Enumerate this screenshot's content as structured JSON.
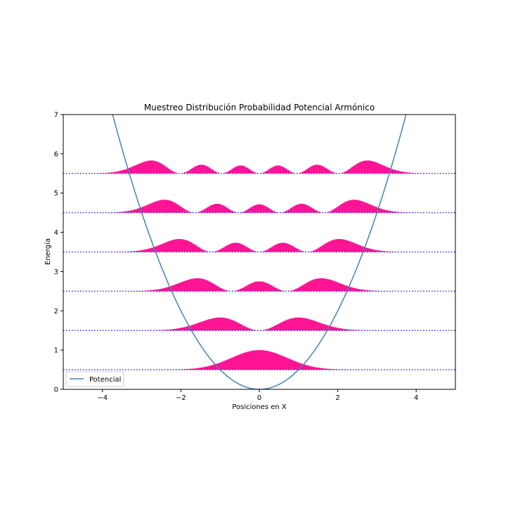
{
  "chart_data": {
    "type": "area",
    "title": "Muestreo Distribución Probabilidad Potencial Armónico",
    "xlabel": "Posiciones en X",
    "ylabel": "Energía",
    "xlim": [
      -5,
      5
    ],
    "ylim": [
      0,
      7
    ],
    "xticks": [
      -4,
      -2,
      0,
      2,
      4
    ],
    "xtick_labels": [
      "−4",
      "−2",
      "0",
      "2",
      "4"
    ],
    "yticks": [
      0,
      1,
      2,
      3,
      4,
      5,
      6,
      7
    ],
    "ytick_labels": [
      "0",
      "1",
      "2",
      "3",
      "4",
      "5",
      "6",
      "7"
    ],
    "grid": false,
    "legend": {
      "placement": "lower-left",
      "entries": [
        "Potencial"
      ]
    },
    "potential": {
      "name": "Potencial",
      "formula": "x^2/2",
      "color": "#4682b4"
    },
    "levels": [
      {
        "n": 0,
        "energy": 0.5
      },
      {
        "n": 1,
        "energy": 1.5
      },
      {
        "n": 2,
        "energy": 2.5
      },
      {
        "n": 3,
        "energy": 3.5
      },
      {
        "n": 4,
        "energy": 4.5
      },
      {
        "n": 5,
        "energy": 5.5
      }
    ],
    "histogram_color": "#ff1493",
    "level_line_color": "#3333dd"
  }
}
